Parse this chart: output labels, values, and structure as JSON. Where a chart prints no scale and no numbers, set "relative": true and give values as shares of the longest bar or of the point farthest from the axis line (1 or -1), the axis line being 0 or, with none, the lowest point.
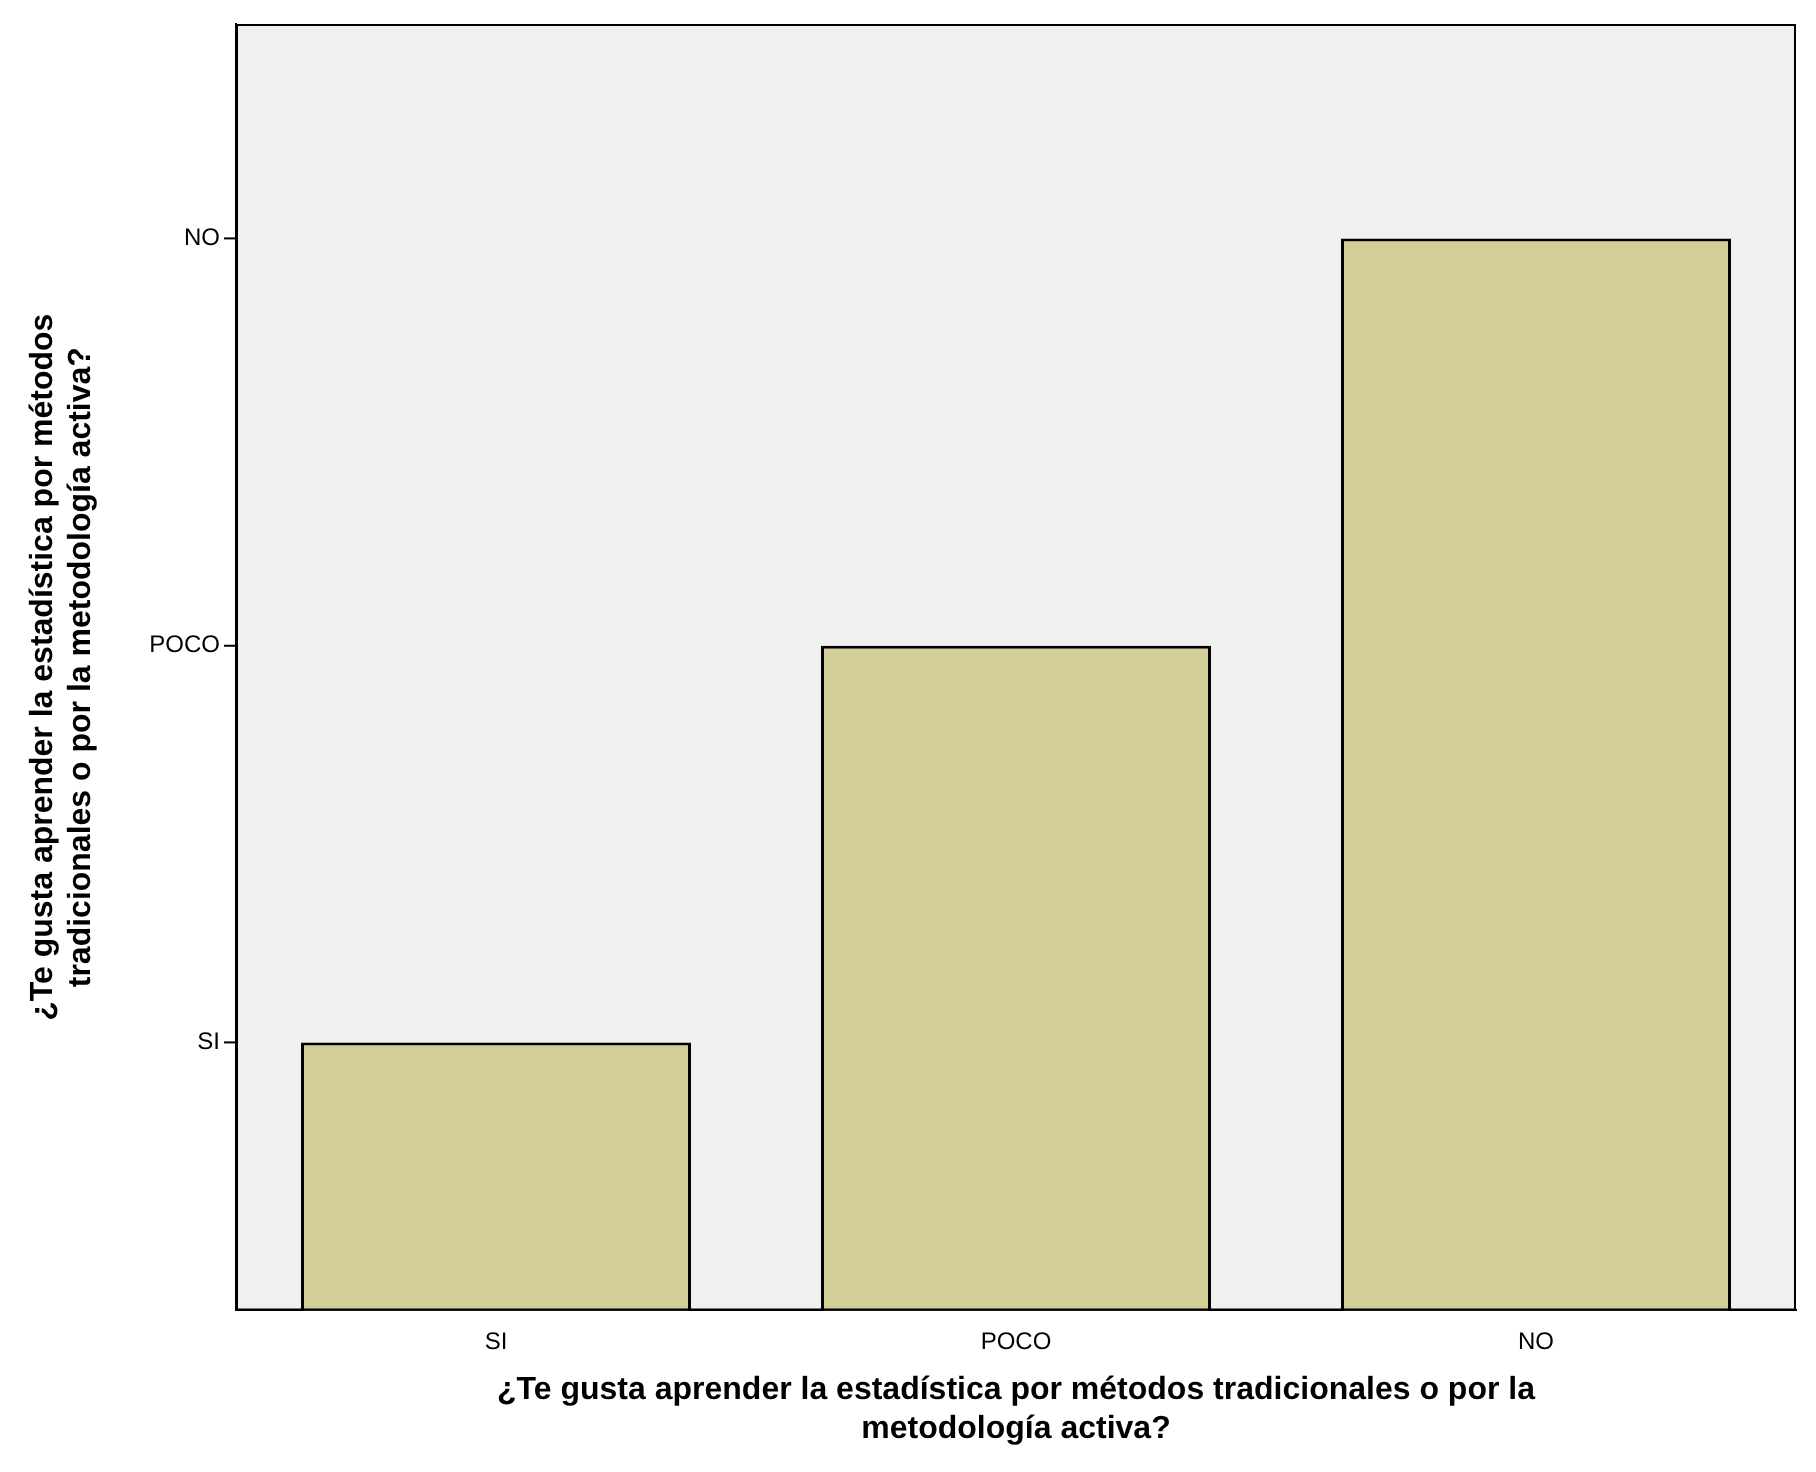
{
  "chart_data": {
    "type": "bar",
    "xlabel": "¿Te gusta aprender la estadística por métodos tradicionales o por la\nmetodología activa?",
    "ylabel": "¿Te gusta aprender la estadística por métodos\ntradicionales o por la metodología activa?",
    "categories": [
      "SI",
      "POCO",
      "NO"
    ],
    "values": [
      0.25,
      0.62,
      1
    ],
    "color": "#d3ce97",
    "relative": true,
    "annotations": [
      "SI",
      "POCO",
      "NO"
    ],
    "grid": false,
    "legend": false
  }
}
